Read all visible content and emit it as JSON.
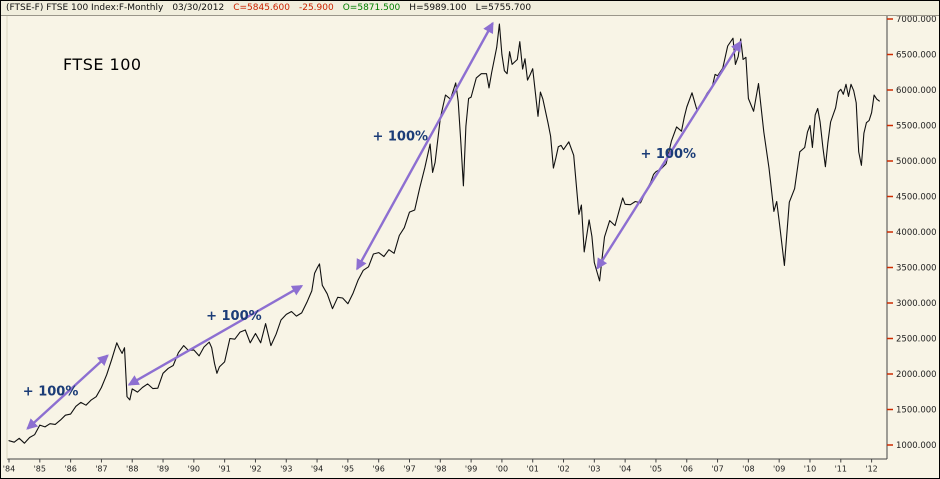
{
  "header": {
    "symbol_info": "(FTSE-F) FTSE 100 Index:F-Monthly",
    "date": "03/30/2012",
    "close": "C=5845.600",
    "change": "-25.900",
    "open": "O=5871.500",
    "high": "H=5989.100",
    "low": "L=5755.700"
  },
  "chart": {
    "title": "FTSE 100"
  },
  "chart_data": {
    "type": "line",
    "title": "FTSE 100",
    "x_unit": "year",
    "x_range": [
      1984.0,
      2012.5
    ],
    "y_range": [
      1000,
      7000
    ],
    "y_tick_interval": 500,
    "grid": false,
    "legend": "none",
    "colors": {
      "background": "#f8f4e6",
      "price_line": "#101010",
      "axis_line": "#444444",
      "axis_tick": "#cc2b00",
      "axis_text": "#222222",
      "arrow": "#8d6fd1",
      "annotation_text": "#1b3c77"
    },
    "y_tick_labels": [
      "7000.000",
      "6500.000",
      "6000.000",
      "5500.000",
      "5000.000",
      "4500.000",
      "4000.000",
      "3500.000",
      "3000.000",
      "2500.000",
      "2000.000",
      "1500.000",
      "1000.000"
    ],
    "x_tick_labels": [
      "'84",
      "'85",
      "'86",
      "'87",
      "'88",
      "'89",
      "'90",
      "'91",
      "'92",
      "'93",
      "'94",
      "'95",
      "'96",
      "'97",
      "'98",
      "'99",
      "'00",
      "'01",
      "'02",
      "'03",
      "'04",
      "'05",
      "'06",
      "'07",
      "'08",
      "'09",
      "'10",
      "'11",
      "'12"
    ],
    "series": [
      {
        "name": "FTSE 100 Index monthly close",
        "points": [
          [
            1984.0,
            1060
          ],
          [
            1984.17,
            1040
          ],
          [
            1984.33,
            1095
          ],
          [
            1984.5,
            1025
          ],
          [
            1984.67,
            1105
          ],
          [
            1984.83,
            1145
          ],
          [
            1985.0,
            1280
          ],
          [
            1985.17,
            1255
          ],
          [
            1985.33,
            1300
          ],
          [
            1985.5,
            1290
          ],
          [
            1985.67,
            1350
          ],
          [
            1985.83,
            1420
          ],
          [
            1986.0,
            1435
          ],
          [
            1986.17,
            1545
          ],
          [
            1986.33,
            1600
          ],
          [
            1986.5,
            1560
          ],
          [
            1986.67,
            1635
          ],
          [
            1986.83,
            1680
          ],
          [
            1987.0,
            1810
          ],
          [
            1987.17,
            1990
          ],
          [
            1987.33,
            2200
          ],
          [
            1987.5,
            2440
          ],
          [
            1987.58,
            2360
          ],
          [
            1987.67,
            2290
          ],
          [
            1987.75,
            2370
          ],
          [
            1987.83,
            1680
          ],
          [
            1987.92,
            1635
          ],
          [
            1988.0,
            1790
          ],
          [
            1988.17,
            1745
          ],
          [
            1988.33,
            1810
          ],
          [
            1988.5,
            1860
          ],
          [
            1988.67,
            1795
          ],
          [
            1988.83,
            1800
          ],
          [
            1989.0,
            2010
          ],
          [
            1989.17,
            2080
          ],
          [
            1989.33,
            2120
          ],
          [
            1989.5,
            2300
          ],
          [
            1989.67,
            2400
          ],
          [
            1989.83,
            2330
          ],
          [
            1990.0,
            2340
          ],
          [
            1990.17,
            2255
          ],
          [
            1990.33,
            2380
          ],
          [
            1990.5,
            2450
          ],
          [
            1990.58,
            2370
          ],
          [
            1990.67,
            2150
          ],
          [
            1990.75,
            2010
          ],
          [
            1990.83,
            2100
          ],
          [
            1991.0,
            2170
          ],
          [
            1991.17,
            2500
          ],
          [
            1991.33,
            2490
          ],
          [
            1991.5,
            2590
          ],
          [
            1991.67,
            2620
          ],
          [
            1991.83,
            2440
          ],
          [
            1992.0,
            2570
          ],
          [
            1992.17,
            2440
          ],
          [
            1992.33,
            2710
          ],
          [
            1992.5,
            2400
          ],
          [
            1992.67,
            2560
          ],
          [
            1992.83,
            2760
          ],
          [
            1993.0,
            2840
          ],
          [
            1993.17,
            2880
          ],
          [
            1993.33,
            2815
          ],
          [
            1993.5,
            2860
          ],
          [
            1993.67,
            3010
          ],
          [
            1993.83,
            3170
          ],
          [
            1993.92,
            3420
          ],
          [
            1994.0,
            3490
          ],
          [
            1994.08,
            3550
          ],
          [
            1994.17,
            3250
          ],
          [
            1994.33,
            3130
          ],
          [
            1994.5,
            2920
          ],
          [
            1994.67,
            3080
          ],
          [
            1994.83,
            3070
          ],
          [
            1995.0,
            2990
          ],
          [
            1995.17,
            3140
          ],
          [
            1995.33,
            3320
          ],
          [
            1995.5,
            3460
          ],
          [
            1995.67,
            3510
          ],
          [
            1995.83,
            3690
          ],
          [
            1996.0,
            3710
          ],
          [
            1996.17,
            3655
          ],
          [
            1996.33,
            3750
          ],
          [
            1996.5,
            3700
          ],
          [
            1996.67,
            3950
          ],
          [
            1996.83,
            4060
          ],
          [
            1997.0,
            4280
          ],
          [
            1997.17,
            4310
          ],
          [
            1997.33,
            4620
          ],
          [
            1997.5,
            4910
          ],
          [
            1997.67,
            5240
          ],
          [
            1997.75,
            4840
          ],
          [
            1997.83,
            4980
          ],
          [
            1998.0,
            5600
          ],
          [
            1998.17,
            5930
          ],
          [
            1998.33,
            5870
          ],
          [
            1998.5,
            6100
          ],
          [
            1998.58,
            5840
          ],
          [
            1998.67,
            5250
          ],
          [
            1998.75,
            4650
          ],
          [
            1998.83,
            5490
          ],
          [
            1998.92,
            5880
          ],
          [
            1999.0,
            5900
          ],
          [
            1999.17,
            6170
          ],
          [
            1999.33,
            6230
          ],
          [
            1999.5,
            6230
          ],
          [
            1999.58,
            6030
          ],
          [
            1999.67,
            6250
          ],
          [
            1999.83,
            6600
          ],
          [
            1999.92,
            6930
          ],
          [
            2000.0,
            6500
          ],
          [
            2000.08,
            6270
          ],
          [
            2000.17,
            6230
          ],
          [
            2000.25,
            6540
          ],
          [
            2000.33,
            6360
          ],
          [
            2000.5,
            6430
          ],
          [
            2000.58,
            6680
          ],
          [
            2000.67,
            6294
          ],
          [
            2000.75,
            6440
          ],
          [
            2000.83,
            6140
          ],
          [
            2000.92,
            6220
          ],
          [
            2001.0,
            6300
          ],
          [
            2001.17,
            5630
          ],
          [
            2001.25,
            5970
          ],
          [
            2001.33,
            5870
          ],
          [
            2001.5,
            5530
          ],
          [
            2001.58,
            5350
          ],
          [
            2001.67,
            4900
          ],
          [
            2001.75,
            5040
          ],
          [
            2001.83,
            5200
          ],
          [
            2001.92,
            5220
          ],
          [
            2002.0,
            5160
          ],
          [
            2002.17,
            5270
          ],
          [
            2002.33,
            5080
          ],
          [
            2002.5,
            4250
          ],
          [
            2002.58,
            4380
          ],
          [
            2002.67,
            3720
          ],
          [
            2002.75,
            3940
          ],
          [
            2002.83,
            4170
          ],
          [
            2002.92,
            3940
          ],
          [
            2003.0,
            3570
          ],
          [
            2003.17,
            3310
          ],
          [
            2003.25,
            3620
          ],
          [
            2003.33,
            3930
          ],
          [
            2003.5,
            4160
          ],
          [
            2003.67,
            4090
          ],
          [
            2003.83,
            4340
          ],
          [
            2003.92,
            4480
          ],
          [
            2004.0,
            4390
          ],
          [
            2004.17,
            4385
          ],
          [
            2004.33,
            4430
          ],
          [
            2004.5,
            4410
          ],
          [
            2004.67,
            4570
          ],
          [
            2004.83,
            4700
          ],
          [
            2004.92,
            4810
          ],
          [
            2005.0,
            4850
          ],
          [
            2005.17,
            4890
          ],
          [
            2005.33,
            4960
          ],
          [
            2005.5,
            5280
          ],
          [
            2005.67,
            5480
          ],
          [
            2005.83,
            5420
          ],
          [
            2005.92,
            5620
          ],
          [
            2006.0,
            5760
          ],
          [
            2006.17,
            5960
          ],
          [
            2006.33,
            5720
          ],
          [
            2006.5,
            5830
          ],
          [
            2006.67,
            5960
          ],
          [
            2006.83,
            6050
          ],
          [
            2006.92,
            6220
          ],
          [
            2007.0,
            6200
          ],
          [
            2007.17,
            6310
          ],
          [
            2007.33,
            6620
          ],
          [
            2007.5,
            6730
          ],
          [
            2007.58,
            6360
          ],
          [
            2007.67,
            6470
          ],
          [
            2007.75,
            6720
          ],
          [
            2007.83,
            6430
          ],
          [
            2007.92,
            6460
          ],
          [
            2008.0,
            5880
          ],
          [
            2008.17,
            5700
          ],
          [
            2008.33,
            6090
          ],
          [
            2008.5,
            5410
          ],
          [
            2008.67,
            4900
          ],
          [
            2008.83,
            4290
          ],
          [
            2008.92,
            4430
          ],
          [
            2009.0,
            4150
          ],
          [
            2009.17,
            3530
          ],
          [
            2009.33,
            4420
          ],
          [
            2009.5,
            4610
          ],
          [
            2009.67,
            5130
          ],
          [
            2009.83,
            5190
          ],
          [
            2009.92,
            5410
          ],
          [
            2010.0,
            5500
          ],
          [
            2010.08,
            5190
          ],
          [
            2010.17,
            5650
          ],
          [
            2010.25,
            5740
          ],
          [
            2010.33,
            5550
          ],
          [
            2010.42,
            5190
          ],
          [
            2010.5,
            4920
          ],
          [
            2010.58,
            5260
          ],
          [
            2010.67,
            5550
          ],
          [
            2010.83,
            5750
          ],
          [
            2010.92,
            5970
          ],
          [
            2011.0,
            6010
          ],
          [
            2011.08,
            5940
          ],
          [
            2011.17,
            6080
          ],
          [
            2011.25,
            5910
          ],
          [
            2011.33,
            6080
          ],
          [
            2011.42,
            5990
          ],
          [
            2011.5,
            5820
          ],
          [
            2011.58,
            5130
          ],
          [
            2011.67,
            4940
          ],
          [
            2011.75,
            5390
          ],
          [
            2011.83,
            5540
          ],
          [
            2011.92,
            5570
          ],
          [
            2012.0,
            5680
          ],
          [
            2012.08,
            5930
          ],
          [
            2012.17,
            5870
          ],
          [
            2012.25,
            5845.6
          ]
        ]
      }
    ],
    "annotations": {
      "labels": [
        {
          "text": "+ 100%",
          "x": 1985.35,
          "y": 1700
        },
        {
          "text": "+ 100%",
          "x": 1991.3,
          "y": 2760
        },
        {
          "text": "+ 100%",
          "x": 1996.7,
          "y": 5290
        },
        {
          "text": "+ 100%",
          "x": 2005.4,
          "y": 5040
        }
      ],
      "arrows": [
        {
          "x1": 1984.6,
          "y1": 1230,
          "x2": 1987.2,
          "y2": 2260
        },
        {
          "x1": 1987.9,
          "y1": 1850,
          "x2": 1993.5,
          "y2": 3240
        },
        {
          "x1": 1995.3,
          "y1": 3480,
          "x2": 1999.7,
          "y2": 6940
        },
        {
          "x1": 2003.1,
          "y1": 3490,
          "x2": 2007.75,
          "y2": 6680
        }
      ]
    }
  }
}
